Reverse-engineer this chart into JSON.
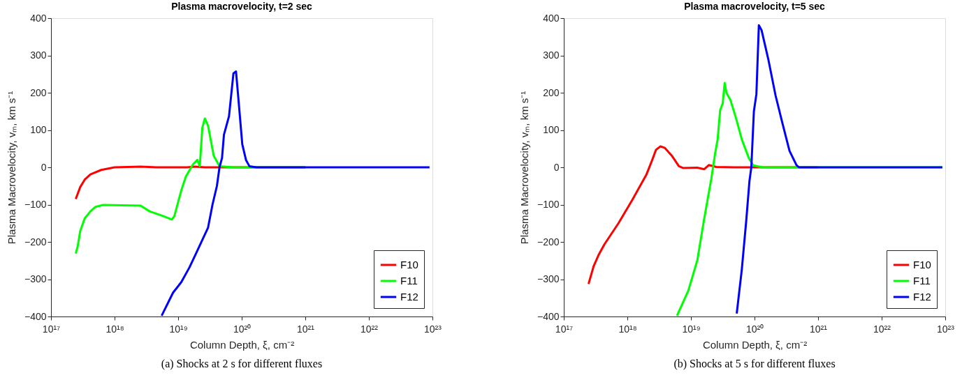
{
  "chart_data": [
    {
      "type": "line",
      "title": "Plasma macrovelocity, t=2 sec",
      "xlabel": "Column Depth, ξ, cm⁻²",
      "ylabel": "Plasma Macrovelocity, vₘ, km s⁻¹",
      "log": "x",
      "grid": false,
      "legend": "bottom right",
      "line_style": "solid",
      "marker": "none",
      "xlim": [
        1e+17,
        1e+23
      ],
      "ylim": [
        -400,
        400
      ],
      "xticks": [
        {
          "value": 1e+17,
          "label": "10¹⁷"
        },
        {
          "value": 1e+18,
          "label": "10¹⁸"
        },
        {
          "value": 1e+19,
          "label": "10¹⁹"
        },
        {
          "value": 1e+20,
          "label": "10²⁰"
        },
        {
          "value": 1e+21,
          "label": "10²¹"
        },
        {
          "value": 1e+22,
          "label": "10²²"
        },
        {
          "value": 1e+23,
          "label": "10²³"
        }
      ],
      "yticks": [
        -400,
        -300,
        -200,
        -100,
        0,
        100,
        200,
        300,
        400
      ],
      "annotations": [
        "(a) Shocks at 2 s for different fluxes"
      ],
      "series": [
        {
          "name": "F10",
          "color": "#ff0000",
          "x": [
            2.45e+17,
            2.88e+17,
            3.39e+17,
            4.17e+17,
            6.17e+17,
            1e+18,
            2.57e+18,
            4.57e+18,
            1.38e+19,
            1.86e+19,
            2.6e+19,
            1e+20,
            1e+21
          ],
          "values": [
            -85,
            -53,
            -33,
            -19,
            -7,
            0,
            2,
            0,
            0,
            2,
            0,
            0,
            0
          ]
        },
        {
          "name": "F11",
          "color": "#00ff00",
          "x": [
            2.45e+17,
            2.63e+17,
            2.88e+17,
            3.39e+17,
            4.17e+17,
            5.01e+17,
            6.61e+17,
            2.57e+18,
            3.55e+18,
            5.89e+18,
            7.94e+18,
            8.71e+18,
            1.12e+19,
            1.32e+19,
            1.7e+19,
            2e+19,
            2.19e+19,
            2.4e+19,
            2.63e+19,
            2.95e+19,
            3.63e+19,
            4.47e+19,
            7.41e+19,
            1e+21
          ],
          "values": [
            -231,
            -212,
            -171,
            -137,
            -118,
            -106,
            -101,
            -103,
            -118,
            -131,
            -140,
            -131,
            -62,
            -25,
            7,
            20,
            3,
            106,
            131,
            112,
            31,
            3,
            0,
            0
          ]
        },
        {
          "name": "F12",
          "color": "#0000ff",
          "x": [
            5.5e+18,
            8.32e+18,
            1.12e+19,
            1.51e+19,
            1.91e+19,
            2.95e+19,
            3.47e+19,
            4.07e+19,
            4.47e+19,
            4.9e+19,
            5.25e+19,
            6.31e+19,
            7.41e+19,
            8.13e+19,
            8.71e+19,
            1.02e+20,
            1.17e+20,
            1.32e+20,
            1.7e+20,
            1e+21,
            1e+22,
            9e+22
          ],
          "values": [
            -398,
            -336,
            -308,
            -268,
            -231,
            -162,
            -100,
            -50,
            0,
            25,
            87,
            137,
            252,
            257,
            199,
            62,
            19,
            3,
            0,
            0,
            0,
            0
          ]
        }
      ]
    },
    {
      "type": "line",
      "title": "Plasma macrovelocity, t=5 sec",
      "xlabel": "Column Depth, ξ, cm⁻²",
      "ylabel": "Plasma Macrovelocity, vₘ, km s⁻¹",
      "log": "x",
      "grid": false,
      "legend": "bottom right",
      "line_style": "solid",
      "marker": "none",
      "xlim": [
        1e+17,
        1e+23
      ],
      "ylim": [
        -400,
        400
      ],
      "xticks": [
        {
          "value": 1e+17,
          "label": "10¹⁷"
        },
        {
          "value": 1e+18,
          "label": "10¹⁸"
        },
        {
          "value": 1e+19,
          "label": "10¹⁹"
        },
        {
          "value": 1e+20,
          "label": "10²⁰"
        },
        {
          "value": 1e+21,
          "label": "10²¹"
        },
        {
          "value": 1e+22,
          "label": "10²²"
        },
        {
          "value": 1e+23,
          "label": "10²³"
        }
      ],
      "yticks": [
        -400,
        -300,
        -200,
        -100,
        0,
        100,
        200,
        300,
        400
      ],
      "annotations": [
        "(b) Shocks at 5 s for different fluxes"
      ],
      "series": [
        {
          "name": "F10",
          "color": "#ff0000",
          "x": [
            2.45e+17,
            2.95e+17,
            3.55e+17,
            4.37e+17,
            7.24e+17,
            1.2e+18,
            2e+18,
            2.45e+18,
            2.82e+18,
            3.31e+18,
            3.89e+18,
            5.01e+18,
            6.46e+18,
            7.59e+18,
            1.26e+19,
            1.62e+19,
            1.91e+19,
            2.51e+19,
            4.9e+19,
            1e+21
          ],
          "values": [
            -313,
            -265,
            -234,
            -206,
            -150,
            -87,
            -19,
            19,
            47,
            56,
            52,
            31,
            3,
            -2,
            -1,
            -5,
            6,
            1,
            0,
            0
          ]
        },
        {
          "name": "F11",
          "color": "#00ff00",
          "x": [
            6.03e+18,
            9.12e+18,
            1.26e+19,
            1.62e+19,
            2.09e+19,
            2.4e+19,
            2.63e+19,
            2.88e+19,
            3.16e+19,
            3.39e+19,
            3.63e+19,
            4.17e+19,
            5.13e+19,
            6.31e+19,
            8.13e+19,
            9.55e+19,
            1.35e+20,
            1e+21,
            1e+22,
            9e+22
          ],
          "values": [
            -398,
            -330,
            -249,
            -137,
            -31,
            37,
            75,
            153,
            171,
            226,
            199,
            181,
            131,
            75,
            25,
            5,
            0,
            0,
            0,
            0
          ]
        },
        {
          "name": "F12",
          "color": "#0000ff",
          "x": [
            5.25e+19,
            6.31e+19,
            7.41e+19,
            8.32e+19,
            8.91e+19,
            9.77e+19,
            1.07e+20,
            1.17e+20,
            1.29e+20,
            1.66e+20,
            2.14e+20,
            2.75e+20,
            3.55e+20,
            4.57e+20,
            5.01e+20,
            1e+21,
            1e+22,
            9e+22
          ],
          "values": [
            -392,
            -274,
            -143,
            -37,
            0,
            150,
            196,
            381,
            368,
            287,
            193,
            118,
            44,
            6,
            0,
            0,
            0,
            0
          ]
        }
      ]
    }
  ]
}
